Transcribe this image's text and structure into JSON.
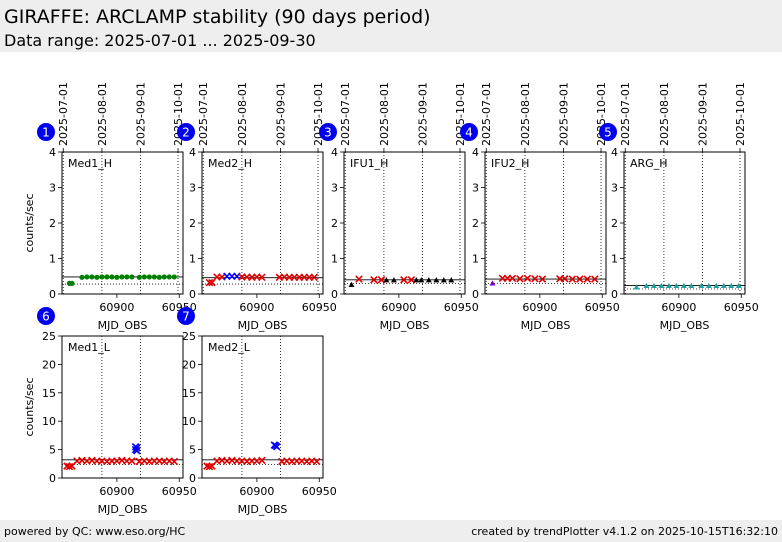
{
  "header": {
    "title": "GIRAFFE: ARCLAMP stability (90 days period)",
    "subtitle": "Data range: 2025-07-01 ... 2025-09-30"
  },
  "footer": {
    "left": "powered by QC: www.eso.org/HC",
    "right": "created by trendPlotter v4.1.2 on 2025-10-15T16:32:10"
  },
  "colors": {
    "badge": "#0000ee",
    "green": "#008000",
    "red": "#e00000",
    "blue": "#0000ff",
    "black": "#000000",
    "teal": "#20a0a0",
    "purple": "#8000c0"
  },
  "chart_data": [
    {
      "type": "scatter",
      "number": "1",
      "label": "Med1_H",
      "xlabel": "MJD_OBS",
      "ylabel": "counts/sec",
      "xlim": [
        60856,
        60953
      ],
      "ylim": [
        0,
        4
      ],
      "xticks": [
        60900,
        60950
      ],
      "yticks": [
        0,
        1,
        2,
        3,
        4
      ],
      "date_ticks": [
        {
          "mjd": 60857,
          "label": "2025-07-01"
        },
        {
          "mjd": 60888,
          "label": "2025-08-01"
        },
        {
          "mjd": 60919,
          "label": "2025-09-01"
        },
        {
          "mjd": 60949,
          "label": "2025-10-01"
        }
      ],
      "reference_line": 0.48,
      "threshold_lines": [
        0.28
      ],
      "series": [
        {
          "marker": "dot",
          "color": "green",
          "x": [
            60862,
            60864
          ],
          "y": [
            0.3,
            0.3
          ]
        },
        {
          "marker": "dot",
          "color": "green",
          "x": [
            60872,
            60876,
            60880,
            60884,
            60888,
            60892,
            60896,
            60900,
            60904,
            60908,
            60912,
            60918,
            60922,
            60926,
            60930,
            60934,
            60938,
            60942,
            60946
          ],
          "y": [
            0.47,
            0.48,
            0.48,
            0.47,
            0.48,
            0.48,
            0.48,
            0.47,
            0.48,
            0.48,
            0.48,
            0.47,
            0.48,
            0.48,
            0.48,
            0.47,
            0.48,
            0.48,
            0.48
          ]
        }
      ]
    },
    {
      "type": "scatter",
      "number": "2",
      "label": "Med2_H",
      "xlabel": "MJD_OBS",
      "ylabel": "",
      "xlim": [
        60856,
        60953
      ],
      "ylim": [
        0,
        4
      ],
      "xticks": [
        60900,
        60950
      ],
      "yticks": [
        0,
        1,
        2,
        3,
        4
      ],
      "date_ticks": [
        {
          "mjd": 60857,
          "label": "2025-07-01"
        },
        {
          "mjd": 60888,
          "label": "2025-08-01"
        },
        {
          "mjd": 60919,
          "label": "2025-09-01"
        },
        {
          "mjd": 60949,
          "label": "2025-10-01"
        }
      ],
      "reference_line": 0.46,
      "threshold_lines": [
        0.28
      ],
      "series": [
        {
          "marker": "x",
          "color": "red",
          "x": [
            60862,
            60864
          ],
          "y": [
            0.32,
            0.32
          ]
        },
        {
          "marker": "x",
          "color": "red",
          "x": [
            60868,
            60872,
            60896,
            60900,
            60904,
            60918,
            60922,
            60926,
            60930,
            60934,
            60938,
            60942,
            60946
          ],
          "y": [
            0.48,
            0.48,
            0.47,
            0.48,
            0.47,
            0.47,
            0.48,
            0.47,
            0.47,
            0.47,
            0.47,
            0.47,
            0.47
          ]
        },
        {
          "marker": "x",
          "color": "blue",
          "x": [
            60876,
            60880,
            60884
          ],
          "y": [
            0.5,
            0.5,
            0.5
          ]
        },
        {
          "marker": "x",
          "color": "red",
          "x": [
            60888,
            60892
          ],
          "y": [
            0.48,
            0.48
          ]
        }
      ]
    },
    {
      "type": "scatter",
      "number": "3",
      "label": "IFU1_H",
      "xlabel": "MJD_OBS",
      "ylabel": "",
      "xlim": [
        60856,
        60953
      ],
      "ylim": [
        0,
        4
      ],
      "xticks": [
        60900,
        60950
      ],
      "yticks": [
        0,
        1,
        2,
        3,
        4
      ],
      "date_ticks": [
        {
          "mjd": 60857,
          "label": "2025-07-01"
        },
        {
          "mjd": 60888,
          "label": "2025-08-01"
        },
        {
          "mjd": 60919,
          "label": "2025-09-01"
        },
        {
          "mjd": 60949,
          "label": "2025-10-01"
        }
      ],
      "reference_line": 0.4,
      "threshold_lines": [
        0.3
      ],
      "series": [
        {
          "marker": "x",
          "color": "red",
          "x": [
            60868,
            60880,
            60886,
            60904,
            60910
          ],
          "y": [
            0.42,
            0.4,
            0.4,
            0.4,
            0.4
          ]
        },
        {
          "marker": "tri",
          "color": "black",
          "x": [
            60862,
            60890,
            60896,
            60914,
            60918,
            60924,
            60930,
            60936,
            60942
          ],
          "y": [
            0.26,
            0.39,
            0.39,
            0.39,
            0.39,
            0.39,
            0.39,
            0.39,
            0.39
          ]
        }
      ]
    },
    {
      "type": "scatter",
      "number": "4",
      "label": "IFU2_H",
      "xlabel": "MJD_OBS",
      "ylabel": "",
      "xlim": [
        60856,
        60953
      ],
      "ylim": [
        0,
        4
      ],
      "xticks": [
        60900,
        60950
      ],
      "yticks": [
        0,
        1,
        2,
        3,
        4
      ],
      "date_ticks": [
        {
          "mjd": 60857,
          "label": "2025-07-01"
        },
        {
          "mjd": 60888,
          "label": "2025-08-01"
        },
        {
          "mjd": 60919,
          "label": "2025-09-01"
        },
        {
          "mjd": 60949,
          "label": "2025-10-01"
        }
      ],
      "reference_line": 0.42,
      "threshold_lines": [
        0.3
      ],
      "series": [
        {
          "marker": "tri",
          "color": "purple",
          "x": [
            60862
          ],
          "y": [
            0.3
          ]
        },
        {
          "marker": "x",
          "color": "red",
          "x": [
            60870,
            60874,
            60878,
            60884,
            60890,
            60896,
            60902,
            60916,
            60920,
            60926,
            60932,
            60938,
            60944
          ],
          "y": [
            0.44,
            0.44,
            0.44,
            0.43,
            0.44,
            0.43,
            0.42,
            0.43,
            0.43,
            0.42,
            0.42,
            0.42,
            0.42
          ]
        }
      ]
    },
    {
      "type": "scatter",
      "number": "5",
      "label": "ARG_H",
      "xlabel": "MJD_OBS",
      "ylabel": "",
      "xlim": [
        60856,
        60953
      ],
      "ylim": [
        0,
        4
      ],
      "xticks": [
        60900,
        60950
      ],
      "yticks": [
        0,
        1,
        2,
        3,
        4
      ],
      "date_ticks": [
        {
          "mjd": 60857,
          "label": "2025-07-01"
        },
        {
          "mjd": 60888,
          "label": "2025-08-01"
        },
        {
          "mjd": 60919,
          "label": "2025-09-01"
        },
        {
          "mjd": 60949,
          "label": "2025-10-01"
        }
      ],
      "reference_line": 0.24,
      "threshold_lines": [
        0.14
      ],
      "series": [
        {
          "marker": "tri",
          "color": "teal",
          "x": [
            60866,
            60874,
            60880,
            60886,
            60892,
            60898,
            60904,
            60910,
            60918,
            60924,
            60930,
            60936,
            60942,
            60948
          ],
          "y": [
            0.19,
            0.23,
            0.23,
            0.23,
            0.23,
            0.23,
            0.23,
            0.23,
            0.23,
            0.23,
            0.23,
            0.23,
            0.23,
            0.23
          ]
        }
      ]
    },
    {
      "type": "scatter",
      "number": "6",
      "label": "Med1_L",
      "xlabel": "MJD_OBS",
      "ylabel": "counts/sec",
      "xlim": [
        60856,
        60953
      ],
      "ylim": [
        0,
        25
      ],
      "xticks": [
        60900,
        60950
      ],
      "yticks": [
        0,
        5,
        10,
        15,
        20,
        25
      ],
      "date_ticks": [
        {
          "mjd": 60888,
          "label": ""
        },
        {
          "mjd": 60919,
          "label": ""
        }
      ],
      "reference_line": 3.2,
      "threshold_lines": [
        2.4
      ],
      "series": [
        {
          "marker": "x",
          "color": "red",
          "x": [
            60860,
            60862,
            60864
          ],
          "y": [
            2.1,
            2.0,
            2.1
          ]
        },
        {
          "marker": "x",
          "color": "red",
          "x": [
            60868,
            60872,
            60876,
            60880,
            60884,
            60888,
            60892,
            60896,
            60900,
            60904,
            60908,
            60912,
            60918,
            60922,
            60926,
            60930,
            60934,
            60938,
            60942,
            60946
          ],
          "y": [
            3.0,
            3.1,
            3.0,
            3.1,
            3.0,
            3.0,
            2.9,
            3.0,
            3.0,
            3.1,
            3.0,
            3.0,
            2.9,
            3.0,
            2.9,
            3.0,
            3.0,
            2.9,
            3.0,
            2.9
          ]
        },
        {
          "marker": "x",
          "color": "blue",
          "x": [
            60915,
            60915,
            60916,
            60916
          ],
          "y": [
            5.0,
            5.5,
            4.8,
            5.3
          ]
        }
      ]
    },
    {
      "type": "scatter",
      "number": "7",
      "label": "Med2_L",
      "xlabel": "MJD_OBS",
      "ylabel": "",
      "xlim": [
        60856,
        60953
      ],
      "ylim": [
        0,
        25
      ],
      "xticks": [
        60900,
        60950
      ],
      "yticks": [
        0,
        5,
        10,
        15,
        20,
        25
      ],
      "date_ticks": [
        {
          "mjd": 60888,
          "label": ""
        },
        {
          "mjd": 60919,
          "label": ""
        }
      ],
      "reference_line": 3.2,
      "threshold_lines": [
        2.4
      ],
      "series": [
        {
          "marker": "x",
          "color": "red",
          "x": [
            60860,
            60862,
            60864
          ],
          "y": [
            2.1,
            2.0,
            2.1
          ]
        },
        {
          "marker": "x",
          "color": "red",
          "x": [
            60868,
            60872,
            60876,
            60880,
            60884,
            60888,
            60892,
            60896,
            60900,
            60904,
            60920,
            60924,
            60928,
            60932,
            60936,
            60940,
            60944,
            60948
          ],
          "y": [
            3.0,
            3.1,
            3.0,
            3.1,
            3.0,
            3.0,
            2.9,
            3.0,
            3.0,
            3.1,
            2.9,
            3.0,
            2.9,
            3.0,
            3.0,
            2.9,
            3.0,
            2.9
          ]
        },
        {
          "marker": "x",
          "color": "blue",
          "x": [
            60914,
            60916,
            60915
          ],
          "y": [
            5.8,
            5.5,
            5.7
          ]
        }
      ]
    }
  ]
}
